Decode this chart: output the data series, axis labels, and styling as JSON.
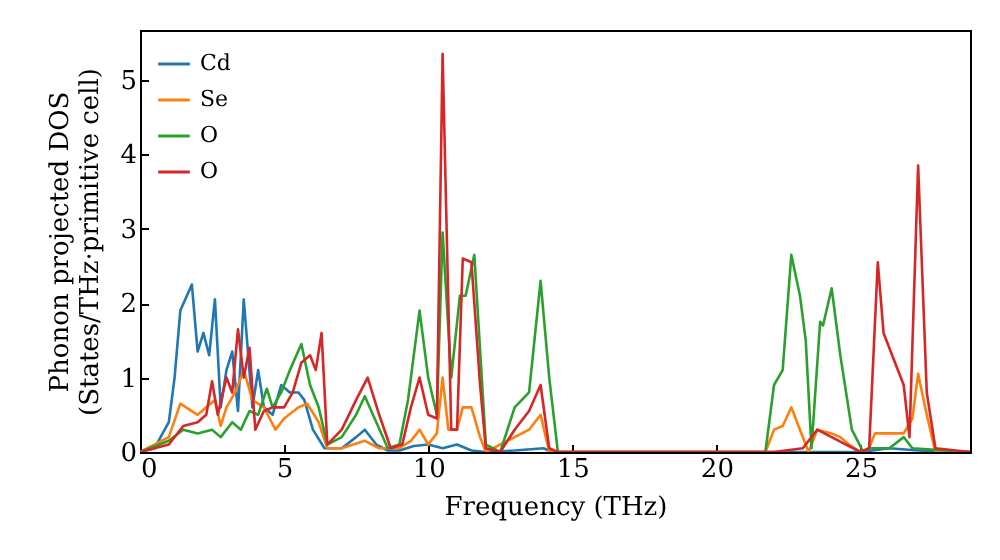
{
  "chart_data": {
    "type": "line",
    "xlabel": "Frequency (THz)",
    "ylabel": "Phonon projected DOS\n(States/THz·primitive cell)",
    "xlim": [
      0,
      28.8
    ],
    "ylim": [
      0,
      5.67
    ],
    "xticks": [
      0,
      5,
      10,
      15,
      20,
      25
    ],
    "yticks": [
      0,
      1,
      2,
      3,
      4,
      5
    ],
    "legend": "top left",
    "grid": false,
    "series": [
      {
        "name": "Cd",
        "color": "#1f77b4",
        "x": [
          0,
          0.5,
          1,
          1.2,
          1.4,
          1.8,
          2.0,
          2.2,
          2.4,
          2.6,
          2.8,
          3.0,
          3.2,
          3.4,
          3.6,
          3.9,
          4.1,
          4.3,
          4.6,
          4.9,
          5.2,
          5.5,
          5.7,
          6.0,
          6.4,
          7.0,
          7.5,
          7.8,
          8.2,
          8.6,
          9.0,
          9.5,
          10.0,
          10.5,
          11.0,
          11.5,
          12.0,
          13,
          14,
          14.3,
          22,
          25,
          26,
          27,
          28.8
        ],
        "values": [
          0,
          0.05,
          0.4,
          1.0,
          1.9,
          2.25,
          1.35,
          1.6,
          1.3,
          2.05,
          0.6,
          1.1,
          1.35,
          0.55,
          2.05,
          0.6,
          1.1,
          0.6,
          0.5,
          0.9,
          0.8,
          0.8,
          0.7,
          0.3,
          0.05,
          0.05,
          0.2,
          0.3,
          0.1,
          0.02,
          0.02,
          0.08,
          0.1,
          0.05,
          0.1,
          0.02,
          0,
          0.02,
          0.05,
          0,
          0,
          0,
          0.05,
          0.02,
          0
        ]
      },
      {
        "name": "Se",
        "color": "#ff7f0e",
        "x": [
          0,
          1,
          1.4,
          1.8,
          2.0,
          2.3,
          2.6,
          2.8,
          3.0,
          3.3,
          3.6,
          3.9,
          4.3,
          4.7,
          5.0,
          5.5,
          5.8,
          6.2,
          6.5,
          7,
          7.8,
          8.3,
          9,
          9.4,
          9.7,
          10.0,
          10.3,
          10.5,
          10.7,
          11.0,
          11.2,
          11.5,
          11.8,
          12.0,
          13,
          13.5,
          13.9,
          14.2,
          21.7,
          22,
          22.3,
          22.6,
          22.9,
          23.2,
          23.5,
          24,
          24.3,
          24.6,
          25,
          25.3,
          25.5,
          26.5,
          26.8,
          27.0,
          27.3,
          27.6,
          28.8
        ],
        "values": [
          0,
          0.2,
          0.65,
          0.55,
          0.5,
          0.6,
          0.7,
          0.35,
          0.6,
          0.8,
          1.1,
          0.7,
          0.6,
          0.3,
          0.45,
          0.6,
          0.65,
          0.4,
          0.05,
          0.05,
          0.15,
          0.05,
          0.05,
          0.15,
          0.3,
          0.1,
          0.25,
          1.0,
          0.3,
          0.3,
          0.6,
          0.6,
          0.2,
          0,
          0.2,
          0.3,
          0.5,
          0,
          0,
          0.3,
          0.35,
          0.6,
          0.3,
          0,
          0.3,
          0.25,
          0.2,
          0.1,
          0,
          0.05,
          0.25,
          0.25,
          0.45,
          1.05,
          0.5,
          0,
          0
        ]
      },
      {
        "name": "O",
        "color": "#2ca02c",
        "x": [
          0,
          1,
          1.5,
          2,
          2.5,
          2.8,
          3.2,
          3.5,
          3.8,
          4.1,
          4.4,
          4.6,
          4.9,
          5.2,
          5.6,
          5.9,
          6.2,
          6.5,
          7.0,
          7.5,
          7.8,
          8.2,
          8.6,
          9.0,
          9.3,
          9.7,
          10.0,
          10.3,
          10.5,
          10.8,
          11.1,
          11.3,
          11.6,
          12.0,
          12.5,
          13,
          13.5,
          13.9,
          14.2,
          14.5,
          21.7,
          22,
          22.3,
          22.6,
          22.9,
          23.1,
          23.3,
          23.6,
          23.7,
          24.0,
          24.3,
          24.7,
          25.1,
          25.3,
          26.0,
          26.5,
          26.8,
          28.8
        ],
        "values": [
          0,
          0.15,
          0.3,
          0.25,
          0.3,
          0.2,
          0.4,
          0.3,
          0.55,
          0.5,
          0.85,
          0.6,
          0.8,
          1.1,
          1.45,
          0.9,
          0.6,
          0.1,
          0.2,
          0.5,
          0.75,
          0.4,
          0.05,
          0.1,
          0.7,
          1.9,
          1.0,
          0.5,
          2.95,
          1.0,
          2.1,
          2.1,
          2.65,
          0.1,
          0,
          0.6,
          0.8,
          2.3,
          1.0,
          0,
          0,
          0.9,
          1.1,
          2.65,
          2.1,
          1.5,
          0.05,
          1.75,
          1.7,
          2.2,
          1.3,
          0.3,
          0,
          0.05,
          0.05,
          0.2,
          0.05,
          0
        ]
      },
      {
        "name": "O",
        "color": "#d62728",
        "x": [
          0,
          1,
          1.5,
          2,
          2.3,
          2.5,
          2.7,
          3.0,
          3.2,
          3.4,
          3.6,
          3.8,
          4.0,
          4.3,
          4.6,
          5.0,
          5.3,
          5.6,
          5.9,
          6.1,
          6.3,
          6.5,
          7.0,
          7.5,
          7.9,
          8.3,
          8.7,
          9.1,
          9.4,
          9.7,
          10.0,
          10.3,
          10.5,
          10.8,
          11.0,
          11.2,
          11.5,
          11.8,
          12.0,
          12.5,
          13,
          13.5,
          13.9,
          14.2,
          14.5,
          22,
          23,
          23.5,
          24,
          24.5,
          25,
          25.3,
          25.6,
          25.8,
          26.2,
          26.5,
          26.7,
          27.0,
          27.3,
          27.6,
          28.8
        ],
        "values": [
          0,
          0.1,
          0.35,
          0.4,
          0.5,
          0.95,
          0.5,
          1.0,
          0.8,
          1.65,
          1.0,
          1.4,
          0.3,
          0.55,
          0.6,
          0.6,
          0.8,
          1.2,
          1.3,
          1.1,
          1.6,
          0.1,
          0.3,
          0.7,
          1.0,
          0.5,
          0.05,
          0.1,
          0.6,
          1.0,
          0.5,
          0.45,
          5.35,
          0.3,
          0.3,
          2.6,
          2.55,
          0.9,
          0.05,
          0,
          0.3,
          0.55,
          0.9,
          0.05,
          0,
          0,
          0.05,
          0.3,
          0.2,
          0.1,
          0,
          0.05,
          2.55,
          1.6,
          1.2,
          0.9,
          0.2,
          3.85,
          0.8,
          0.05,
          0
        ]
      }
    ]
  }
}
